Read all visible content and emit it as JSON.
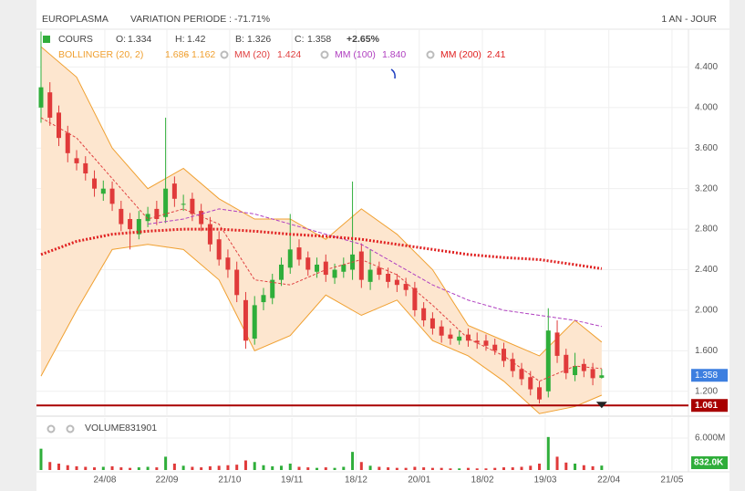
{
  "chart_data": {
    "type": "candlestick",
    "title": "EUROPLASMA",
    "subtitle": "VARIATION PERIODE : -71.71%",
    "period": "1 AN - JOUR",
    "cours_label": "COURS",
    "ohlc_labels": [
      "O:",
      "H:",
      "B:",
      "C:"
    ],
    "change": {
      "value": 2.65,
      "label": "+2.65%"
    },
    "up_color": "#2fae3a",
    "down_color": "#e03a3a",
    "xlim": [
      -0.51,
      72.75
    ],
    "xticks": [
      {
        "value": 7.17,
        "label": "24/08"
      },
      {
        "value": 14.14,
        "label": "22/09"
      },
      {
        "value": 21.2,
        "label": "21/10"
      },
      {
        "value": 28.2,
        "label": "19/11"
      },
      {
        "value": 35.4,
        "label": "18/12"
      },
      {
        "value": 42.5,
        "label": "20/01"
      },
      {
        "value": 49.6,
        "label": "18/02"
      },
      {
        "value": 56.66,
        "label": "19/03"
      },
      {
        "value": 63.8,
        "label": "22/04"
      },
      {
        "value": 70.9,
        "label": "21/05"
      }
    ],
    "ylim": [
      0.955,
      4.773
    ],
    "yticks": [
      {
        "value": 1.2,
        "label": "1.200"
      },
      {
        "value": 1.6,
        "label": "1.600"
      },
      {
        "value": 2.0,
        "label": "2.000"
      },
      {
        "value": 2.4,
        "label": "2.400"
      },
      {
        "value": 2.8,
        "label": "2.800"
      },
      {
        "value": 3.2,
        "label": "3.200"
      },
      {
        "value": 3.6,
        "label": "3.600"
      },
      {
        "value": 4.0,
        "label": "4.000"
      },
      {
        "value": 4.4,
        "label": "4.400"
      }
    ],
    "grid": true,
    "open": [
      4.0,
      4.15,
      3.95,
      3.75,
      3.5,
      3.45,
      3.3,
      3.15,
      3.2,
      3.0,
      2.9,
      2.75,
      2.88,
      3.0,
      2.92,
      3.25,
      3.05,
      3.1,
      2.98,
      2.85,
      2.7,
      2.52,
      2.4,
      2.1,
      1.72,
      2.08,
      2.12,
      2.3,
      2.42,
      2.62,
      2.52,
      2.38,
      2.48,
      2.32,
      2.38,
      2.4,
      2.58,
      2.28,
      2.42,
      2.36,
      2.3,
      2.26,
      2.22,
      2.02,
      1.92,
      1.84,
      1.76,
      1.7,
      1.76,
      1.7,
      1.7,
      1.66,
      1.62,
      1.52,
      1.42,
      1.34,
      1.24,
      1.2,
      1.78,
      1.56,
      1.36,
      1.47,
      1.42,
      1.334
    ],
    "high": [
      4.75,
      4.25,
      4.02,
      3.82,
      3.58,
      3.52,
      3.38,
      3.28,
      3.27,
      3.08,
      2.96,
      2.98,
      3.02,
      3.08,
      3.9,
      3.32,
      3.14,
      3.16,
      3.05,
      2.92,
      2.78,
      2.6,
      2.48,
      2.18,
      2.14,
      2.22,
      2.36,
      2.52,
      2.95,
      2.7,
      2.58,
      2.52,
      2.55,
      2.46,
      2.52,
      3.27,
      2.66,
      2.6,
      2.48,
      2.42,
      2.36,
      2.32,
      2.28,
      2.08,
      1.98,
      1.9,
      1.82,
      1.8,
      1.82,
      1.78,
      1.76,
      1.72,
      1.68,
      1.58,
      1.48,
      1.4,
      1.3,
      2.02,
      1.9,
      1.62,
      1.58,
      1.52,
      1.48,
      1.42
    ],
    "low": [
      3.85,
      3.82,
      3.62,
      3.46,
      3.38,
      3.28,
      3.12,
      3.08,
      2.98,
      2.78,
      2.6,
      2.7,
      2.82,
      2.84,
      2.86,
      3.02,
      2.98,
      2.88,
      2.78,
      2.58,
      2.44,
      2.32,
      2.08,
      1.62,
      1.66,
      2.0,
      2.06,
      2.24,
      2.36,
      2.44,
      2.34,
      2.32,
      2.28,
      2.26,
      2.32,
      2.3,
      2.22,
      2.2,
      2.3,
      2.22,
      2.18,
      2.14,
      1.94,
      1.84,
      1.76,
      1.68,
      1.66,
      1.66,
      1.64,
      1.62,
      1.6,
      1.56,
      1.44,
      1.34,
      1.26,
      1.16,
      1.08,
      1.14,
      1.48,
      1.32,
      1.3,
      1.34,
      1.26,
      1.326
    ],
    "close": [
      4.2,
      3.9,
      3.7,
      3.55,
      3.45,
      3.35,
      3.2,
      3.2,
      3.05,
      2.85,
      2.8,
      2.9,
      2.95,
      2.9,
      3.2,
      3.1,
      3.05,
      2.95,
      2.85,
      2.65,
      2.5,
      2.4,
      2.15,
      1.7,
      2.05,
      2.15,
      2.3,
      2.45,
      2.6,
      2.5,
      2.4,
      2.45,
      2.35,
      2.4,
      2.45,
      2.55,
      2.3,
      2.4,
      2.35,
      2.28,
      2.25,
      2.2,
      2.0,
      1.9,
      1.82,
      1.75,
      1.72,
      1.74,
      1.7,
      1.68,
      1.65,
      1.6,
      1.5,
      1.4,
      1.32,
      1.22,
      1.12,
      1.8,
      1.55,
      1.38,
      1.45,
      1.4,
      1.33,
      1.358
    ],
    "bollinger": {
      "name": "BOLLINGER (20, 2)",
      "color": "#f0a030",
      "fill": "#fde6cf",
      "x": [
        0,
        4,
        8,
        12,
        16,
        20,
        24,
        28,
        32,
        36,
        40,
        44,
        48,
        52,
        56,
        60,
        63
      ],
      "upper": [
        4.6,
        4.3,
        3.6,
        3.2,
        3.4,
        3.1,
        2.9,
        2.9,
        2.7,
        3.0,
        2.75,
        2.4,
        1.85,
        1.7,
        1.55,
        1.9,
        1.686
      ],
      "lower": [
        1.35,
        2.0,
        2.6,
        2.65,
        2.6,
        2.3,
        1.6,
        1.75,
        2.15,
        1.95,
        2.1,
        1.7,
        1.55,
        1.3,
        0.98,
        1.05,
        1.162
      ]
    },
    "series": [
      {
        "name": "MM (20)",
        "color": "#e04040",
        "dash": "3,2",
        "width": 1,
        "x": [
          0,
          4,
          8,
          12,
          16,
          20,
          24,
          28,
          32,
          36,
          40,
          44,
          48,
          52,
          56,
          60,
          63
        ],
        "values": [
          3.9,
          3.7,
          3.3,
          2.9,
          3.0,
          2.85,
          2.3,
          2.25,
          2.4,
          2.5,
          2.35,
          2.05,
          1.72,
          1.55,
          1.3,
          1.45,
          1.424
        ]
      },
      {
        "name": "MM (100)",
        "color": "#b040c0",
        "dash": "4,2",
        "width": 1,
        "x": [
          12,
          16,
          20,
          24,
          28,
          32,
          36,
          40,
          44,
          48,
          52,
          56,
          60,
          63
        ],
        "values": [
          2.85,
          2.9,
          3.0,
          2.95,
          2.85,
          2.75,
          2.65,
          2.45,
          2.25,
          2.1,
          2.0,
          1.95,
          1.9,
          1.84
        ],
        "last_label": "1.840"
      },
      {
        "name": "MM (200)",
        "color": "#e02020",
        "dash": "2,2",
        "width": 3,
        "x": [
          0,
          4,
          8,
          12,
          16,
          20,
          24,
          28,
          32,
          36,
          40,
          44,
          48,
          52,
          56,
          60,
          63
        ],
        "values": [
          2.55,
          2.68,
          2.75,
          2.78,
          2.8,
          2.8,
          2.78,
          2.75,
          2.73,
          2.7,
          2.65,
          2.6,
          2.55,
          2.52,
          2.5,
          2.45,
          2.41
        ]
      }
    ],
    "level": 1.061,
    "level_color": "#a80000",
    "last_color": "#3d7fe0",
    "volume": {
      "name": "VOLUME",
      "last_label": "832.0K",
      "ylim": [
        0,
        9770000
      ],
      "yticks": [
        {
          "value": 6000000,
          "label": "6.000M"
        }
      ],
      "values": [
        4000000,
        1500000,
        1200000,
        900000,
        700000,
        600000,
        500000,
        600000,
        700000,
        500000,
        400000,
        500000,
        600000,
        500000,
        2500000,
        1200000,
        800000,
        600000,
        500000,
        700000,
        800000,
        900000,
        1000000,
        1800000,
        1500000,
        900000,
        700000,
        800000,
        1200000,
        600000,
        500000,
        400000,
        500000,
        400000,
        600000,
        3400000,
        1500000,
        800000,
        600000,
        500000,
        400000,
        400000,
        600000,
        500000,
        400000,
        400000,
        300000,
        300000,
        400000,
        300000,
        300000,
        400000,
        500000,
        500000,
        600000,
        800000,
        1200000,
        6200000,
        2500000,
        1400000,
        1200000,
        900000,
        700000,
        831901
      ]
    }
  }
}
